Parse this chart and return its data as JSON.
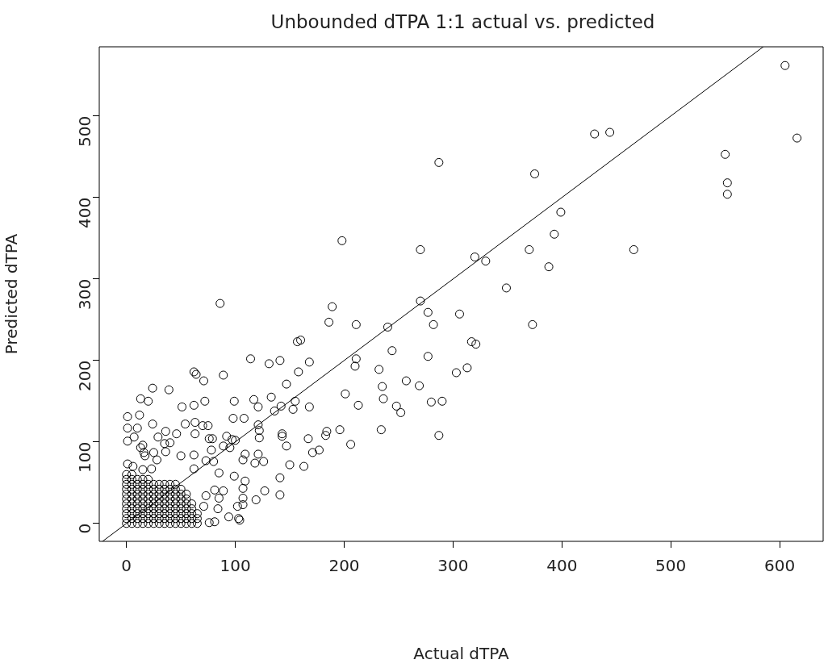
{
  "chart_data": {
    "type": "scatter",
    "title": "Unbounded dTPA 1:1 actual vs. predicted",
    "xlabel": "Actual dTPA",
    "ylabel": "Predicted dTPA",
    "xlim": [
      -25,
      640
    ],
    "ylim": [
      -22,
      585
    ],
    "xticks": [
      0,
      100,
      200,
      300,
      400,
      500,
      600
    ],
    "yticks": [
      0,
      100,
      200,
      300,
      400,
      500
    ],
    "grid": false,
    "legend": false,
    "marker": "circle",
    "series": [
      {
        "type": "scatter",
        "color": "#000000",
        "x": [
          605,
          616,
          550,
          552,
          552,
          430,
          444,
          287,
          375,
          399,
          393,
          466,
          370,
          388,
          198,
          270,
          320,
          330,
          349,
          86,
          189,
          186,
          211,
          240,
          270,
          277,
          282,
          306,
          373,
          157,
          160,
          317,
          321,
          244,
          277,
          211,
          210,
          232,
          313,
          303,
          257,
          269,
          235,
          201,
          236,
          213,
          248,
          252,
          280,
          290,
          196,
          184,
          183,
          234,
          287,
          206
        ],
        "values": [
          562,
          473,
          453,
          418,
          404,
          478,
          480,
          443,
          429,
          382,
          355,
          336,
          336,
          315,
          347,
          336,
          327,
          322,
          289,
          270,
          266,
          247,
          244,
          241,
          273,
          259,
          244,
          257,
          244,
          223,
          225,
          223,
          220,
          212,
          205,
          202,
          193,
          189,
          191,
          185,
          175,
          169,
          168,
          159,
          153,
          145,
          144,
          136,
          149,
          150,
          115,
          113,
          108,
          115,
          108,
          97
        ]
      },
      {
        "type": "scatter",
        "color": "#000000",
        "x": [
          114,
          131,
          141,
          168,
          62,
          64,
          71,
          89,
          158,
          147,
          24,
          39,
          13,
          20,
          51,
          62,
          72,
          99,
          117,
          121,
          133,
          136,
          142,
          155,
          153,
          168,
          1,
          12,
          1,
          10,
          24,
          54,
          63,
          70,
          75,
          98,
          108,
          121,
          7,
          1,
          36,
          46,
          29,
          35,
          40,
          63,
          15,
          13,
          16,
          17,
          25,
          28,
          36,
          50,
          76,
          79,
          92,
          97,
          100,
          122,
          122,
          143,
          143,
          167,
          147,
          171,
          177,
          62,
          73,
          89,
          78,
          95,
          109,
          107,
          121,
          126,
          118,
          150,
          163,
          141,
          127,
          141,
          119,
          80,
          1,
          6,
          15,
          23,
          62,
          85,
          99,
          109,
          107,
          107,
          107,
          102,
          103,
          104,
          94,
          76,
          81,
          84,
          85,
          81,
          89,
          73,
          71
        ],
        "values": [
          202,
          196,
          200,
          198,
          186,
          183,
          175,
          182,
          186,
          171,
          166,
          164,
          153,
          150,
          143,
          145,
          150,
          150,
          152,
          143,
          155,
          138,
          144,
          150,
          140,
          143,
          131,
          133,
          117,
          117,
          122,
          122,
          124,
          120,
          120,
          129,
          129,
          121,
          106,
          101,
          113,
          110,
          106,
          98,
          99,
          110,
          96,
          93,
          87,
          83,
          87,
          78,
          88,
          83,
          104,
          104,
          107,
          103,
          102,
          114,
          105,
          110,
          107,
          104,
          95,
          87,
          90,
          84,
          77,
          95,
          90,
          93,
          85,
          78,
          85,
          76,
          74,
          72,
          70,
          56,
          40,
          35,
          29,
          76,
          73,
          70,
          66,
          67,
          67,
          62,
          58,
          52,
          43,
          31,
          23,
          21,
          6,
          4,
          8,
          1,
          2,
          18,
          31,
          41,
          40,
          34,
          21
        ]
      },
      {
        "type": "scatter",
        "color": "#000000",
        "x": [
          0,
          5,
          10,
          15,
          20,
          25,
          30,
          35,
          40,
          45,
          50,
          55,
          60,
          65,
          0,
          5,
          10,
          15,
          20,
          25,
          30,
          35,
          40,
          45,
          50,
          55,
          60,
          65,
          0,
          5,
          10,
          15,
          20,
          25,
          30,
          35,
          40,
          45,
          50,
          55,
          60,
          65,
          0,
          5,
          10,
          15,
          20,
          25,
          30,
          35,
          40,
          45,
          50,
          55,
          60,
          0,
          5,
          10,
          15,
          20,
          25,
          30,
          35,
          40,
          45,
          50,
          55,
          60,
          0,
          5,
          10,
          15,
          20,
          25,
          30,
          35,
          40,
          45,
          50,
          55,
          0,
          5,
          10,
          15,
          20,
          25,
          30,
          35,
          40,
          45,
          50,
          55,
          0,
          5,
          10,
          15,
          20,
          25,
          30,
          35,
          40,
          45,
          50,
          0,
          5,
          10,
          15,
          20,
          25,
          30,
          35,
          40,
          45,
          0,
          5,
          10,
          15,
          20,
          0,
          5
        ],
        "values": [
          0,
          0,
          0,
          0,
          0,
          0,
          0,
          0,
          0,
          0,
          0,
          0,
          0,
          0,
          6,
          6,
          6,
          6,
          6,
          6,
          6,
          6,
          6,
          6,
          6,
          6,
          6,
          6,
          12,
          12,
          12,
          12,
          12,
          12,
          12,
          12,
          12,
          12,
          12,
          12,
          12,
          12,
          18,
          18,
          18,
          18,
          18,
          18,
          18,
          18,
          18,
          18,
          18,
          18,
          18,
          24,
          24,
          24,
          24,
          24,
          24,
          24,
          24,
          24,
          24,
          24,
          24,
          24,
          30,
          30,
          30,
          30,
          30,
          30,
          30,
          30,
          30,
          30,
          30,
          30,
          36,
          36,
          36,
          36,
          36,
          36,
          36,
          36,
          36,
          36,
          36,
          36,
          42,
          42,
          42,
          42,
          42,
          42,
          42,
          42,
          42,
          42,
          42,
          48,
          48,
          48,
          48,
          48,
          48,
          48,
          48,
          48,
          48,
          54,
          54,
          54,
          54,
          54,
          60,
          60
        ]
      },
      {
        "type": "line",
        "color": "#000000",
        "marker": "none",
        "line_style": "solid",
        "x": [
          -22,
          585
        ],
        "values": [
          -22,
          585
        ]
      }
    ]
  }
}
